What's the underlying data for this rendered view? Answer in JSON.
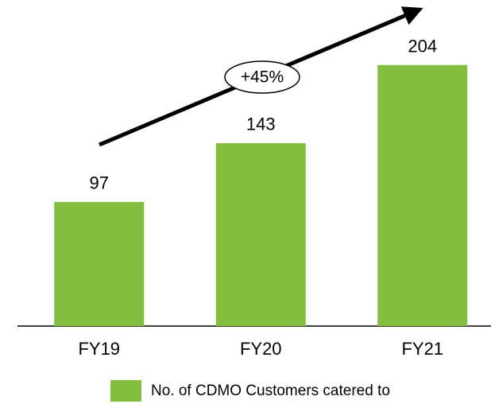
{
  "chart_data": {
    "type": "bar",
    "categories": [
      "FY19",
      "FY20",
      "FY21"
    ],
    "series": [
      {
        "name": "No. of CDMO Customers catered to",
        "color": "#84be41",
        "values": [
          97,
          143,
          204
        ]
      }
    ],
    "ylim": [
      0,
      220
    ],
    "annotation": "+45%",
    "legend": "bottom"
  }
}
